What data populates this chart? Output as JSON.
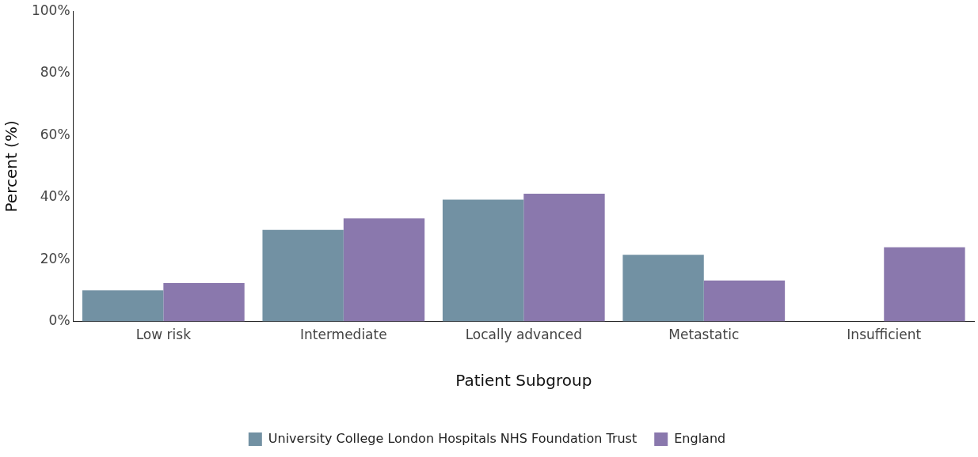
{
  "chart_data": {
    "type": "bar",
    "xlabel": "Patient Subgroup",
    "ylabel": "Percent (%)",
    "categories": [
      "Low risk",
      "Intermediate",
      "Locally advanced",
      "Metastatic",
      "Insufficient"
    ],
    "series": [
      {
        "name": "University College London Hospitals NHS Foundation Trust",
        "color": "#7291a3",
        "values": [
          10.0,
          29.5,
          39.3,
          21.5,
          null
        ]
      },
      {
        "name": "England",
        "color": "#8a78ad",
        "values": [
          12.4,
          33.2,
          41.2,
          13.2,
          23.9
        ]
      }
    ],
    "ylim": [
      0,
      100
    ],
    "yticks": [
      {
        "value": 0,
        "label": "0%"
      },
      {
        "value": 20,
        "label": "20%"
      },
      {
        "value": 40,
        "label": "40%"
      },
      {
        "value": 60,
        "label": "60%"
      },
      {
        "value": 80,
        "label": "80%"
      },
      {
        "value": 100,
        "label": "100%"
      }
    ],
    "grid": false,
    "legend": "bottom"
  }
}
